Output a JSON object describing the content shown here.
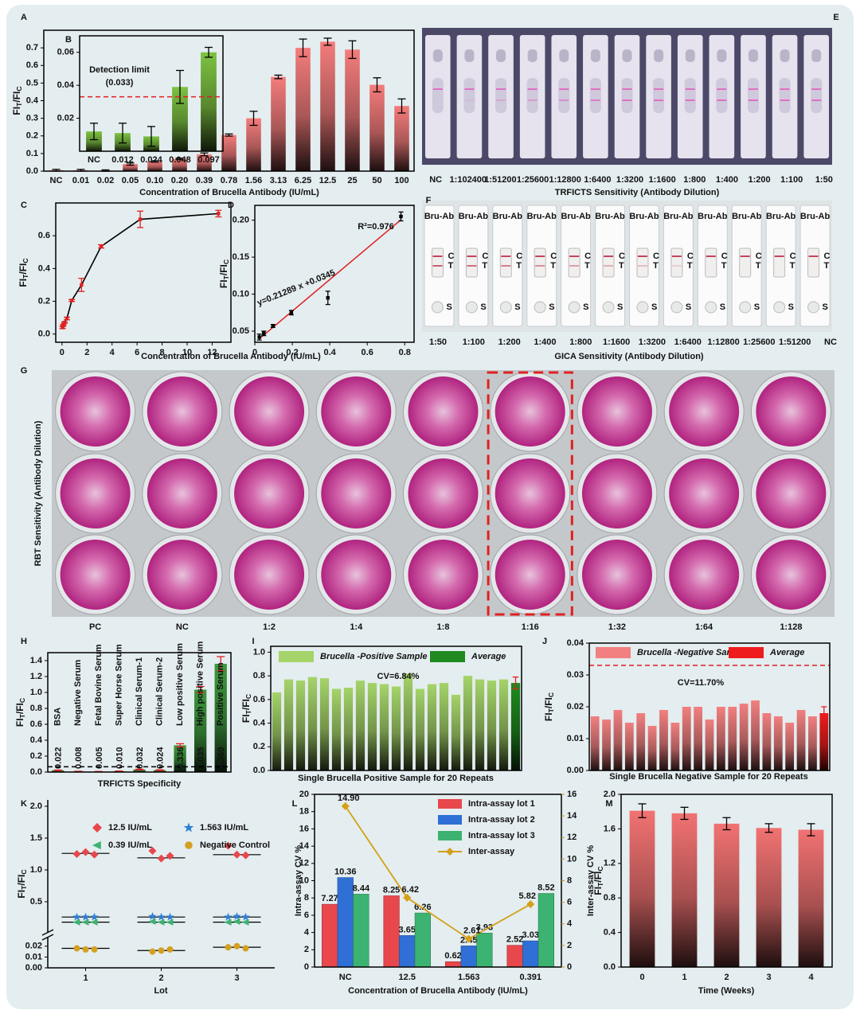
{
  "chart_data": [
    {
      "panel": "A",
      "type": "bar",
      "categories": [
        "NC",
        "0.01",
        "0.02",
        "0.05",
        "0.10",
        "0.20",
        "0.39",
        "0.78",
        "1.56",
        "3.13",
        "6.25",
        "12.5",
        "25",
        "50",
        "100"
      ],
      "values": [
        0.005,
        0.005,
        0.003,
        0.04,
        0.055,
        0.07,
        0.095,
        0.205,
        0.3,
        0.535,
        0.7,
        0.735,
        0.69,
        0.49,
        0.37
      ],
      "errors": [
        0.005,
        0.005,
        0.004,
        0.006,
        0.004,
        0.004,
        0.008,
        0.006,
        0.04,
        0.01,
        0.05,
        0.02,
        0.05,
        0.04,
        0.04
      ],
      "color": "#f47c7c",
      "ylim": [
        0,
        0.8
      ],
      "yticks": [
        {
          "value": 0,
          "label": "0.0"
        },
        0.1,
        0.2,
        0.3,
        0.4,
        0.5,
        0.6,
        0.7
      ],
      "xlabel": "Concentration of Brucella Antibody (IU/mL)",
      "ylabel_parts": [
        "FI",
        "T",
        "/FI",
        "C"
      ]
    },
    {
      "panel": "B",
      "type": "bar",
      "categories": [
        "NC",
        "0.012",
        "0.024",
        "0.048",
        "0.097"
      ],
      "values": [
        0.012,
        0.011,
        0.009,
        0.039,
        0.06
      ],
      "errors": [
        0.005,
        0.006,
        0.006,
        0.01,
        0.003
      ],
      "color": "#7dc242",
      "ylim": [
        0,
        0.07
      ],
      "yticks": [
        0.02,
        0.04,
        0.06
      ],
      "threshold": 0.033,
      "threshold_color": "#e02020",
      "threshold_label": [
        "Detection limit",
        "(0.033)"
      ]
    },
    {
      "panel": "C",
      "type": "line",
      "x": [
        0.05,
        0.1,
        0.2,
        0.39,
        0.78,
        1.56,
        3.13,
        6.25,
        12.5
      ],
      "values": [
        0.04,
        0.055,
        0.07,
        0.095,
        0.205,
        0.3,
        0.535,
        0.7,
        0.735
      ],
      "errors": [
        0.006,
        0.004,
        0.004,
        0.008,
        0.006,
        0.04,
        0.01,
        0.05,
        0.02
      ],
      "color": "#e02020",
      "line_color": "#000000",
      "xlim": [
        -0.5,
        13.5
      ],
      "xticks": [
        0,
        2,
        4,
        6,
        8,
        10,
        12
      ],
      "ylim": [
        -0.05,
        0.8
      ],
      "yticks": [
        {
          "value": 0,
          "label": "0.0"
        },
        0.2,
        0.4,
        0.6
      ],
      "xlabel": "Concentration of Brucella Antibody (IU/mL)",
      "ylabel_parts": [
        "FI",
        "T",
        "/FI",
        "C"
      ]
    },
    {
      "panel": "D",
      "type": "scatter",
      "x": [
        0.024,
        0.048,
        0.097,
        0.195,
        0.39,
        0.78
      ],
      "values": [
        0.042,
        0.047,
        0.057,
        0.075,
        0.095,
        0.205
      ],
      "errors": [
        0.004,
        0.003,
        0.002,
        0.003,
        0.009,
        0.006
      ],
      "color": "#000000",
      "fit": {
        "slope": 0.21289,
        "intercept": 0.0345,
        "color": "#e02020"
      },
      "annotations": [
        "y=0.21289 x +0.0345",
        "R²=0.976"
      ],
      "xlim": [
        0,
        0.85
      ],
      "xticks": [
        0,
        0.2,
        0.4,
        0.6,
        0.8
      ],
      "ylim": [
        0.035,
        0.22
      ],
      "yticks": [
        0.05,
        {
          "value": 0.1,
          "label": "0.10"
        },
        0.15,
        {
          "value": 0.2,
          "label": "0.20"
        }
      ],
      "ylabel_parts": [
        "FI",
        "T",
        "/FI",
        "C"
      ]
    },
    {
      "panel": "H",
      "type": "bar",
      "categories": [
        "BSA",
        "Negative Serum",
        "Fetal Bovine Serum",
        "Super Horse Serum",
        "Clinical Serum-1",
        "Clinical Serum-2",
        "Low positive Serum",
        "High positive Serum",
        "Positive Serum"
      ],
      "category_colors": [
        "#000000",
        "#000000",
        "#000000",
        "#000000",
        "#000000",
        "#000000",
        "#000000",
        "#e02020",
        "#e02020"
      ],
      "values": [
        0.022,
        0.008,
        0.005,
        0.01,
        0.032,
        0.024,
        0.336,
        1.035,
        1.36
      ],
      "value_labels": [
        "0.022",
        "0.008",
        "0.005",
        "0.010",
        "0.032",
        "0.024",
        "0.336",
        "1.035",
        "1.360"
      ],
      "errors": [
        0.003,
        0.002,
        0.002,
        0.003,
        0.004,
        0.004,
        0.02,
        0.04,
        0.09
      ],
      "color": "#3f9a3f",
      "threshold": 0.066,
      "threshold_color": "#000000",
      "ylim": [
        0,
        1.5
      ],
      "yticks": [
        {
          "value": 0,
          "label": "0.0"
        },
        0.2,
        0.4,
        0.6,
        0.8,
        {
          "value": 1,
          "label": "1.0"
        },
        1.2,
        1.4
      ],
      "xlabel": "TRFICTS Specificity",
      "ylabel_parts": [
        "FI",
        "T",
        "/FI",
        "C"
      ]
    },
    {
      "panel": "I",
      "type": "bar",
      "series": [
        {
          "name": "Brucella -Positive Sample",
          "color": "#a5d46a",
          "values": [
            0.66,
            0.77,
            0.76,
            0.79,
            0.78,
            0.69,
            0.7,
            0.76,
            0.74,
            0.73,
            0.71,
            0.82,
            0.69,
            0.73,
            0.74,
            0.64,
            0.8,
            0.77,
            0.76,
            0.77
          ]
        },
        {
          "name": "Average",
          "color": "#1f8a1f",
          "values": [
            0.74
          ],
          "errors": [
            0.05
          ]
        }
      ],
      "annotations": [
        "CV=6.84%"
      ],
      "annotation_color": "#e02020",
      "ylim": [
        0,
        1.05
      ],
      "yticks": [
        {
          "value": 0,
          "label": "0.0"
        },
        0.2,
        0.4,
        0.6,
        0.8,
        {
          "value": 1,
          "label": "1.0"
        }
      ],
      "xlabel": "Single Brucella Positive Sample for 20 Repeats",
      "ylabel_parts": [
        "FI",
        "T",
        "/FI",
        "C"
      ]
    },
    {
      "panel": "J",
      "type": "bar",
      "series": [
        {
          "name": "Brucella -Negative Sample",
          "color": "#f28080",
          "values": [
            0.017,
            0.016,
            0.019,
            0.015,
            0.018,
            0.014,
            0.019,
            0.015,
            0.02,
            0.02,
            0.016,
            0.02,
            0.02,
            0.021,
            0.022,
            0.018,
            0.017,
            0.015,
            0.019,
            0.017
          ]
        },
        {
          "name": "Average",
          "color": "#ee1c1c",
          "values": [
            0.018
          ],
          "errors": [
            0.002
          ]
        }
      ],
      "threshold": 0.033,
      "threshold_color": "#e02020",
      "annotations": [
        "CV=11.70%"
      ],
      "annotation_color": "#1a9a3a",
      "ylim": [
        0,
        0.04
      ],
      "yticks": [
        {
          "value": 0,
          "label": "0.00"
        },
        0.01,
        0.02,
        0.03,
        0.04
      ],
      "xlabel": "Single Brucella Negative Sample for 20 Repeats",
      "ylabel_parts": [
        "FI",
        "T",
        "/FI",
        "C"
      ]
    },
    {
      "panel": "K",
      "type": "strip",
      "x": [
        1,
        2,
        3
      ],
      "xlim": [
        0.5,
        3.5
      ],
      "xticks": [
        1,
        2,
        3
      ],
      "ylim": [
        0,
        2.1
      ],
      "ybreak": [
        0.025,
        0.1
      ],
      "yticks": [
        {
          "value": 0,
          "label": "0.00"
        },
        0.01,
        0.02,
        0.5,
        {
          "value": 1,
          "label": "1.0"
        },
        1.5,
        {
          "value": 2,
          "label": "2.0"
        }
      ],
      "series": [
        {
          "name": "12.5 IU/mL",
          "color": "#e8474c",
          "marker": "diamond",
          "values": [
            [
              1.25,
              1.28,
              1.24
            ],
            [
              1.3,
              1.18,
              1.22
            ],
            [
              1.38,
              1.24,
              1.23
            ]
          ],
          "means": [
            1.26,
            1.19,
            1.24
          ]
        },
        {
          "name": "1.563 IU/mL",
          "color": "#2f7fd6",
          "marker": "star",
          "values": [
            [
              0.26,
              0.26,
              0.26
            ],
            [
              0.27,
              0.26,
              0.26
            ],
            [
              0.26,
              0.27,
              0.26
            ]
          ],
          "means": [
            0.26,
            0.26,
            0.26
          ]
        },
        {
          "name": "0.39 IU/mL",
          "color": "#3cb371",
          "marker": "triangle",
          "values": [
            [
              0.18,
              0.18,
              0.18
            ],
            [
              0.19,
              0.18,
              0.18
            ],
            [
              0.18,
              0.19,
              0.18
            ]
          ],
          "means": [
            0.18,
            0.18,
            0.18
          ]
        },
        {
          "name": "Negative Control",
          "color": "#d4a020",
          "marker": "circle",
          "values": [
            [
              0.018,
              0.017,
              0.017
            ],
            [
              0.015,
              0.016,
              0.017
            ],
            [
              0.019,
              0.02,
              0.018
            ]
          ],
          "means": [
            0.018,
            0.016,
            0.019
          ]
        }
      ],
      "xlabel": "Lot",
      "ylabel_parts": [
        "FI",
        "T",
        "/FI",
        "C"
      ]
    },
    {
      "panel": "L",
      "type": "grouped_bar_line",
      "categories": [
        "NC",
        "12.5",
        "1.563",
        "0.391"
      ],
      "series": [
        {
          "name": "Intra-assay lot 1",
          "color": "#e8474c",
          "values": [
            7.27,
            8.25,
            0.62,
            2.52
          ]
        },
        {
          "name": "Intra-assay lot 2",
          "color": "#2f6fd6",
          "values": [
            10.36,
            3.65,
            2.45,
            3.03
          ]
        },
        {
          "name": "Intra-assay lot 3",
          "color": "#3cb371",
          "values": [
            8.44,
            6.26,
            3.93,
            8.52
          ]
        },
        {
          "name": "Inter-assay",
          "color": "#d4a017",
          "axis": "y2",
          "values": [
            14.9,
            6.42,
            2.61,
            5.82
          ],
          "value_labels": [
            "14.90",
            "6.42",
            "2.61",
            "5.82"
          ],
          "label_color": "#d03020"
        }
      ],
      "ylim": [
        0,
        20
      ],
      "yticks": [
        0,
        2,
        4,
        6,
        8,
        10,
        12,
        14,
        16,
        18,
        20
      ],
      "y2lim": [
        0,
        16
      ],
      "y2ticks": [
        0,
        2,
        4,
        6,
        8,
        10,
        12,
        14,
        16
      ],
      "xlabel": "Concentration of Brucella Antibody (IU/mL)",
      "ylabel": "Intra-assay CV %",
      "y2label": "Inter-assay CV %"
    },
    {
      "panel": "M",
      "type": "bar",
      "categories": [
        "0",
        "1",
        "2",
        "3",
        "4"
      ],
      "values": [
        1.81,
        1.78,
        1.66,
        1.61,
        1.59
      ],
      "errors": [
        0.08,
        0.07,
        0.07,
        0.05,
        0.07
      ],
      "color": "#f27272",
      "ylim": [
        0,
        2.0
      ],
      "yticks": [
        {
          "value": 0,
          "label": "0.0"
        },
        0.4,
        0.8,
        1.2,
        1.6,
        {
          "value": 2,
          "label": "2.0"
        }
      ],
      "xlabel": "Time (Weeks)",
      "ylabel_parts": [
        "FI",
        "T",
        "/FI",
        "C"
      ]
    }
  ],
  "photo_panels": [
    {
      "panel": "E",
      "labels": [
        "NC",
        "1:102400",
        "1:51200",
        "1:25600",
        "1:12800",
        "1:6400",
        "1:3200",
        "1:1600",
        "1:800",
        "1:400",
        "1:200",
        "1:100",
        "1:50"
      ],
      "label_colors": [
        "#000000",
        "#e02020",
        "#000000",
        "#e02020",
        "#000000",
        "#e02020",
        "#000000",
        "#e02020",
        "#000000",
        "#e02020",
        "#000000",
        "#e02020",
        "#000000"
      ],
      "title": "TRFICTS Sensitivity  (Antibody Dilution)"
    },
    {
      "panel": "F",
      "labels": [
        "1:50",
        "1:100",
        "1:200",
        "1:400",
        "1:800",
        "1:1600",
        "1:3200",
        "1:6400",
        "1:12800",
        "1:25600",
        "1:51200",
        "NC"
      ],
      "title": "GICA Sensitivity  (Antibody Dilution)",
      "strip_text": "Bru-Ab",
      "strip_marks": [
        "C",
        "T",
        "S"
      ]
    },
    {
      "panel": "G",
      "labels": [
        "PC",
        "NC",
        "1:2",
        "1:4",
        "1:8",
        "1:16",
        "1:32",
        "1:64",
        "1:128"
      ],
      "highlight": "1:16",
      "ylabel": "RBT Sensitivity (Antibody Dilution)"
    }
  ]
}
